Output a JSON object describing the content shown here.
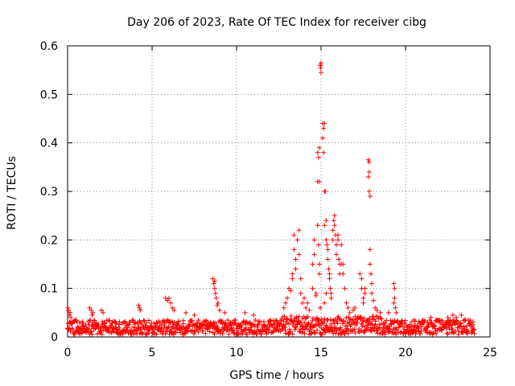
{
  "chart_data": {
    "type": "scatter",
    "title": "Day 206 of 2023, Rate Of TEC Index for receiver cibg",
    "xlabel": "GPS time / hours",
    "ylabel": "ROTI / TECUs",
    "xlim": [
      0,
      25
    ],
    "ylim": [
      0,
      0.6
    ],
    "xticks": [
      0,
      5,
      10,
      15,
      20,
      25
    ],
    "xtick_labels": [
      "0",
      "5",
      "10",
      "15",
      "20",
      "25"
    ],
    "yticks": [
      0,
      0.1,
      0.2,
      0.3,
      0.4,
      0.5,
      0.6
    ],
    "ytick_labels": [
      "0",
      "0.1",
      "0.2",
      "0.3",
      "0.4",
      "0.5",
      "0.6"
    ],
    "grid": true,
    "marker": "+",
    "color": "#ff0000",
    "series": [
      {
        "name": "ROTI",
        "points": [
          [
            0.02,
            0.06
          ],
          [
            0.05,
            0.055
          ],
          [
            0.1,
            0.045
          ],
          [
            0.15,
            0.05
          ],
          [
            0.2,
            0.04
          ],
          [
            0.3,
            0.03
          ],
          [
            0.5,
            0.035
          ],
          [
            1.3,
            0.06
          ],
          [
            1.4,
            0.055
          ],
          [
            1.5,
            0.05
          ],
          [
            1.45,
            0.045
          ],
          [
            2.0,
            0.055
          ],
          [
            2.1,
            0.05
          ],
          [
            4.2,
            0.065
          ],
          [
            4.25,
            0.06
          ],
          [
            4.3,
            0.055
          ],
          [
            5.8,
            0.08
          ],
          [
            5.9,
            0.075
          ],
          [
            6.0,
            0.08
          ],
          [
            6.1,
            0.07
          ],
          [
            6.2,
            0.06
          ],
          [
            6.3,
            0.055
          ],
          [
            7.0,
            0.05
          ],
          [
            7.5,
            0.045
          ],
          [
            8.6,
            0.12
          ],
          [
            8.65,
            0.11
          ],
          [
            8.7,
            0.1
          ],
          [
            8.75,
            0.09
          ],
          [
            8.8,
            0.08
          ],
          [
            8.9,
            0.07
          ],
          [
            8.7,
            0.115
          ],
          [
            8.85,
            0.065
          ],
          [
            9.0,
            0.055
          ],
          [
            9.3,
            0.05
          ],
          [
            10.5,
            0.05
          ],
          [
            11.0,
            0.045
          ],
          [
            12.8,
            0.06
          ],
          [
            12.9,
            0.07
          ],
          [
            13.0,
            0.08
          ],
          [
            13.1,
            0.1
          ],
          [
            13.2,
            0.095
          ],
          [
            13.3,
            0.12
          ],
          [
            13.3,
            0.13
          ],
          [
            13.4,
            0.18
          ],
          [
            13.4,
            0.21
          ],
          [
            13.5,
            0.16
          ],
          [
            13.5,
            0.14
          ],
          [
            13.6,
            0.2
          ],
          [
            13.7,
            0.22
          ],
          [
            13.7,
            0.17
          ],
          [
            13.8,
            0.12
          ],
          [
            13.8,
            0.09
          ],
          [
            13.9,
            0.07
          ],
          [
            14.0,
            0.08
          ],
          [
            14.1,
            0.06
          ],
          [
            14.2,
            0.07
          ],
          [
            14.3,
            0.055
          ],
          [
            14.5,
            0.1
          ],
          [
            14.5,
            0.15
          ],
          [
            14.6,
            0.2
          ],
          [
            14.6,
            0.17
          ],
          [
            14.7,
            0.09
          ],
          [
            14.7,
            0.085
          ],
          [
            14.8,
            0.23
          ],
          [
            14.85,
            0.19
          ],
          [
            14.9,
            0.15
          ],
          [
            14.9,
            0.13
          ],
          [
            14.95,
            0.06
          ],
          [
            14.8,
            0.38
          ],
          [
            14.85,
            0.37
          ],
          [
            14.9,
            0.39
          ],
          [
            14.8,
            0.32
          ],
          [
            14.9,
            0.32
          ],
          [
            14.95,
            0.56
          ],
          [
            15.0,
            0.565
          ],
          [
            14.97,
            0.555
          ],
          [
            15.0,
            0.545
          ],
          [
            14.98,
            0.56
          ],
          [
            15.1,
            0.44
          ],
          [
            15.15,
            0.43
          ],
          [
            15.2,
            0.44
          ],
          [
            15.1,
            0.41
          ],
          [
            15.15,
            0.38
          ],
          [
            15.2,
            0.3
          ],
          [
            15.25,
            0.3
          ],
          [
            15.2,
            0.23
          ],
          [
            15.3,
            0.24
          ],
          [
            15.3,
            0.2
          ],
          [
            15.35,
            0.19
          ],
          [
            15.4,
            0.18
          ],
          [
            15.4,
            0.16
          ],
          [
            15.45,
            0.14
          ],
          [
            15.5,
            0.13
          ],
          [
            15.5,
            0.12
          ],
          [
            15.55,
            0.1
          ],
          [
            15.6,
            0.09
          ],
          [
            15.6,
            0.08
          ],
          [
            15.3,
            0.09
          ],
          [
            15.2,
            0.07
          ],
          [
            15.7,
            0.2
          ],
          [
            15.7,
            0.22
          ],
          [
            15.75,
            0.24
          ],
          [
            15.8,
            0.25
          ],
          [
            15.8,
            0.23
          ],
          [
            15.85,
            0.21
          ],
          [
            15.9,
            0.19
          ],
          [
            15.9,
            0.17
          ],
          [
            16.0,
            0.21
          ],
          [
            16.0,
            0.2
          ],
          [
            16.05,
            0.16
          ],
          [
            16.1,
            0.15
          ],
          [
            16.1,
            0.13
          ],
          [
            16.2,
            0.19
          ],
          [
            16.2,
            0.15
          ],
          [
            16.3,
            0.15
          ],
          [
            16.3,
            0.13
          ],
          [
            16.4,
            0.1
          ],
          [
            16.5,
            0.07
          ],
          [
            16.6,
            0.06
          ],
          [
            16.7,
            0.05
          ],
          [
            16.9,
            0.055
          ],
          [
            17.0,
            0.06
          ],
          [
            17.3,
            0.13
          ],
          [
            17.4,
            0.12
          ],
          [
            17.4,
            0.1
          ],
          [
            17.5,
            0.08
          ],
          [
            17.5,
            0.07
          ],
          [
            17.6,
            0.09
          ],
          [
            17.6,
            0.1
          ],
          [
            17.8,
            0.365
          ],
          [
            17.85,
            0.36
          ],
          [
            17.85,
            0.34
          ],
          [
            17.8,
            0.33
          ],
          [
            17.9,
            0.29
          ],
          [
            17.85,
            0.3
          ],
          [
            17.9,
            0.18
          ],
          [
            17.9,
            0.15
          ],
          [
            17.95,
            0.13
          ],
          [
            18.0,
            0.11
          ],
          [
            18.0,
            0.09
          ],
          [
            18.1,
            0.075
          ],
          [
            18.2,
            0.06
          ],
          [
            18.3,
            0.055
          ],
          [
            18.5,
            0.05
          ],
          [
            19.0,
            0.05
          ],
          [
            19.3,
            0.11
          ],
          [
            19.35,
            0.1
          ],
          [
            19.35,
            0.08
          ],
          [
            19.3,
            0.07
          ],
          [
            19.4,
            0.06
          ],
          [
            19.45,
            0.05
          ],
          [
            20.5,
            0.035
          ],
          [
            21.0,
            0.03
          ],
          [
            21.5,
            0.04
          ],
          [
            22.0,
            0.035
          ],
          [
            22.5,
            0.04
          ],
          [
            22.8,
            0.045
          ],
          [
            23.0,
            0.04
          ],
          [
            23.3,
            0.045
          ],
          [
            23.5,
            0.035
          ],
          [
            23.8,
            0.03
          ],
          [
            24.0,
            0.025
          ]
        ]
      }
    ]
  }
}
